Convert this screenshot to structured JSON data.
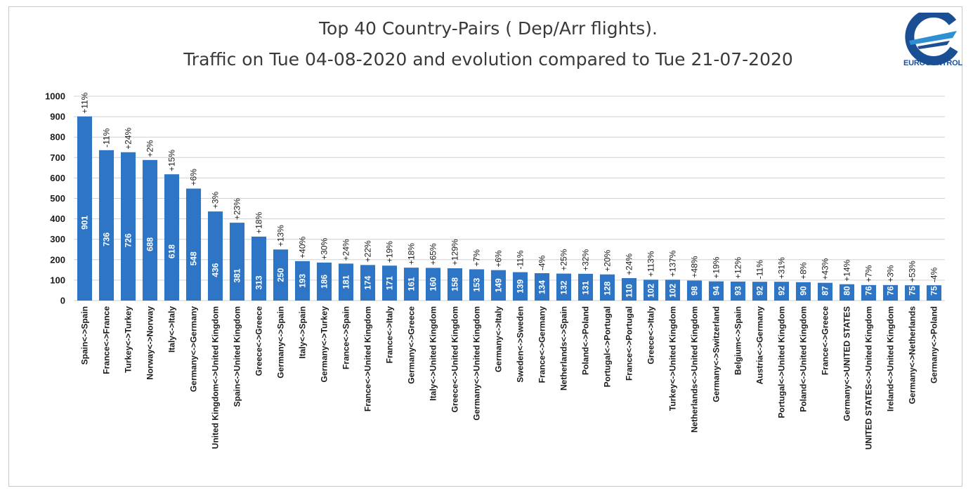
{
  "colors": {
    "bar": "#2e75c5",
    "grid": "#d0d0d0",
    "logo_dark": "#1b4f94",
    "logo_light": "#2f8fd3"
  },
  "logo": {
    "text": "EUROCONTROL"
  },
  "chart_data": {
    "type": "bar",
    "title": "Top 40 Country-Pairs ( Dep/Arr flights).",
    "subtitle": "Traffic on Tue 04-08-2020 and evolution compared to Tue 21-07-2020",
    "xlabel": "",
    "ylabel": "",
    "ylim": [
      0,
      1000
    ],
    "yticks": [
      0,
      100,
      200,
      300,
      400,
      500,
      600,
      700,
      800,
      900,
      1000
    ],
    "grid": true,
    "categories": [
      "Spain<->Spain",
      "France<->France",
      "Turkey<->Turkey",
      "Norway<->Norway",
      "Italy<->Italy",
      "Germany<->Germany",
      "United Kingdom<->United Kingdom",
      "Spain<->United Kingdom",
      "Greece<->Greece",
      "Germany<->Spain",
      "Italy<->Spain",
      "Germany<->Turkey",
      "France<->Spain",
      "France<->United Kingdom",
      "France<->Italy",
      "Germany<->Greece",
      "Italy<->United Kingdom",
      "Greece<->United Kingdom",
      "Germany<->United Kingdom",
      "Germany<->Italy",
      "Sweden<->Sweden",
      "France<->Germany",
      "Netherlands<->Spain",
      "Poland<->Poland",
      "Portugal<->Portugal",
      "France<->Portugal",
      "Greece<->Italy",
      "Turkey<->United Kingdom",
      "Netherlands<->United Kingdom",
      "Germany<->Switzerland",
      "Belgium<->Spain",
      "Austria<->Germany",
      "Portugal<->United Kingdom",
      "Poland<->United Kingdom",
      "France<->Greece",
      "Germany<->UNITED STATES",
      "UNITED STATES<->United Kingdom",
      "Ireland<->United Kingdom",
      "Germany<->Netherlands",
      "Germany<->Poland"
    ],
    "values": [
      901,
      736,
      726,
      688,
      618,
      548,
      436,
      381,
      313,
      250,
      193,
      186,
      181,
      174,
      171,
      161,
      160,
      158,
      153,
      149,
      139,
      134,
      132,
      131,
      128,
      110,
      102,
      102,
      98,
      94,
      93,
      92,
      92,
      90,
      87,
      80,
      76,
      76,
      75,
      75
    ],
    "evolution": [
      "+11%",
      "-11%",
      "+24%",
      "+2%",
      "+15%",
      "+6%",
      "+3%",
      "+23%",
      "+18%",
      "+13%",
      "+40%",
      "+30%",
      "+24%",
      "+22%",
      "+19%",
      "+18%",
      "+65%",
      "+129%",
      "+7%",
      "+6%",
      "-11%",
      "-4%",
      "+25%",
      "+32%",
      "+20%",
      "+24%",
      "+113%",
      "+137%",
      "+48%",
      "+19%",
      "+12%",
      "-11%",
      "+31%",
      "+8%",
      "+43%",
      "+14%",
      "+7%",
      "+3%",
      "+53%",
      "-4%"
    ]
  }
}
